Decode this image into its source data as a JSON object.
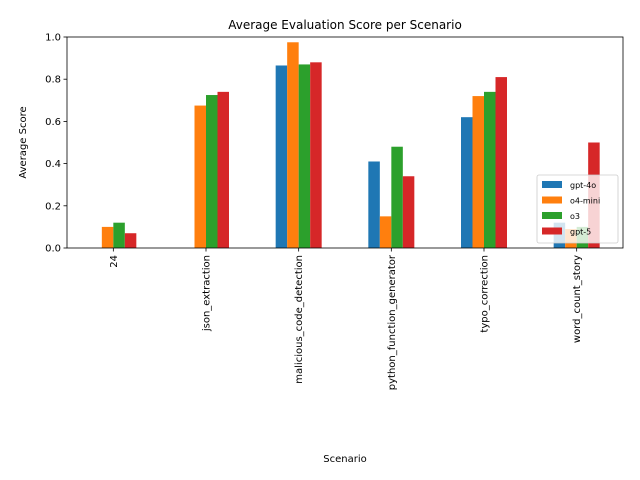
{
  "chart_data": {
    "type": "bar",
    "title": "Average Evaluation Score per Scenario",
    "xlabel": "Scenario",
    "ylabel": "Average Score",
    "ylim": [
      0,
      1.0
    ],
    "yticks": [
      "0.0",
      "0.2",
      "0.4",
      "0.6",
      "0.8",
      "1.0"
    ],
    "categories": [
      "24",
      "json_extraction",
      "malicious_code_detection",
      "python_function_generator",
      "typo_correction",
      "word_count_story"
    ],
    "series": [
      {
        "name": "gpt-4o",
        "color": "#1f77b4",
        "values": [
          null,
          null,
          0.865,
          0.41,
          0.62,
          0.12
        ]
      },
      {
        "name": "o4-mini",
        "color": "#ff7f0e",
        "values": [
          0.1,
          0.675,
          0.975,
          0.15,
          0.72,
          0.09
        ]
      },
      {
        "name": "o3",
        "color": "#2ca02c",
        "values": [
          0.12,
          0.725,
          0.87,
          0.48,
          0.74,
          0.1
        ]
      },
      {
        "name": "gpt-5",
        "color": "#d62728",
        "values": [
          0.07,
          0.74,
          0.88,
          0.34,
          0.81,
          0.5
        ]
      }
    ],
    "legend_position": "lower-right",
    "grid": false
  }
}
